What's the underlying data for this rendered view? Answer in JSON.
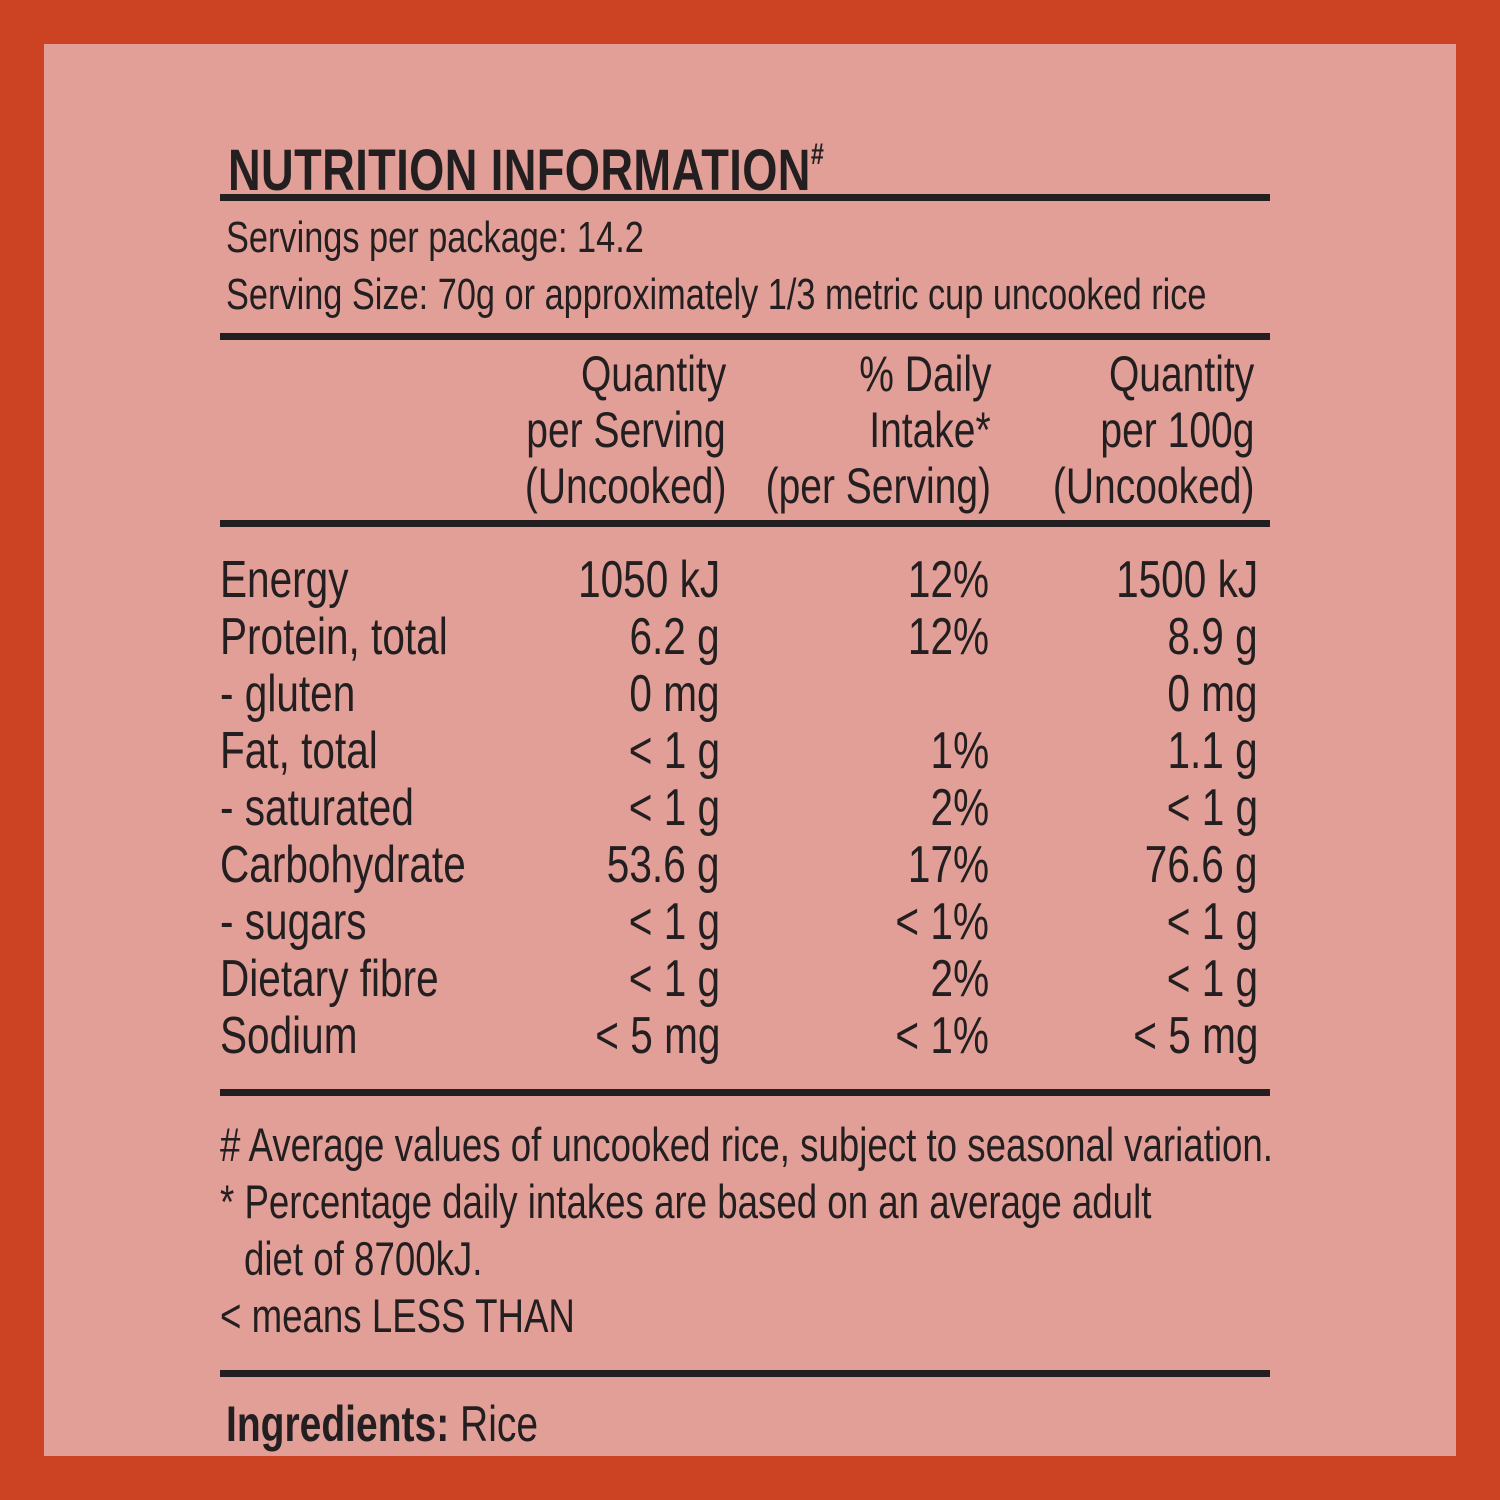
{
  "title": "NUTRITION INFORMATION",
  "title_mark": "#",
  "servings_per_package": "Servings per package: 14.2",
  "serving_size": "Serving Size: 70g or approximately 1/3 metric cup uncooked rice",
  "columns": [
    {
      "lines": [
        "Quantity",
        "per Serving",
        "(Uncooked)"
      ]
    },
    {
      "lines": [
        "% Daily",
        "Intake*",
        "(per Serving)"
      ]
    },
    {
      "lines": [
        "Quantity",
        "per 100g",
        "(Uncooked)"
      ]
    }
  ],
  "rows": [
    {
      "name": "Energy",
      "per_serving": "1050 kJ",
      "daily_intake": "12%",
      "per_100g": "1500 kJ"
    },
    {
      "name": "Protein, total",
      "per_serving": "6.2 g",
      "daily_intake": "12%",
      "per_100g": "8.9 g"
    },
    {
      "name": "- gluten",
      "per_serving": "0 mg",
      "daily_intake": "",
      "per_100g": "0 mg"
    },
    {
      "name": "Fat, total",
      "per_serving": "< 1 g",
      "daily_intake": "1%",
      "per_100g": "1.1 g"
    },
    {
      "name": "- saturated",
      "per_serving": "< 1 g",
      "daily_intake": "2%",
      "per_100g": "< 1 g"
    },
    {
      "name": "Carbohydrate",
      "per_serving": "53.6 g",
      "daily_intake": "17%",
      "per_100g": "76.6 g"
    },
    {
      "name": "- sugars",
      "per_serving": "< 1 g",
      "daily_intake": "< 1%",
      "per_100g": "< 1 g"
    },
    {
      "name": "Dietary fibre",
      "per_serving": "< 1 g",
      "daily_intake": "2%",
      "per_100g": "< 1 g"
    },
    {
      "name": "Sodium",
      "per_serving": "< 5 mg",
      "daily_intake": "< 1%",
      "per_100g": "< 5 mg"
    }
  ],
  "notes": {
    "average": "# Average values of uncooked rice, subject to seasonal variation.",
    "percentage_line1": "* Percentage daily intakes are based on an average adult",
    "percentage_line2": "diet of 8700kJ.",
    "less_than": "< means LESS THAN"
  },
  "ingredients": {
    "label": "Ingredients:",
    "value": "Rice"
  },
  "colors": {
    "border": "#cc4323",
    "panel": "#e29f98",
    "ink": "#231f20"
  }
}
